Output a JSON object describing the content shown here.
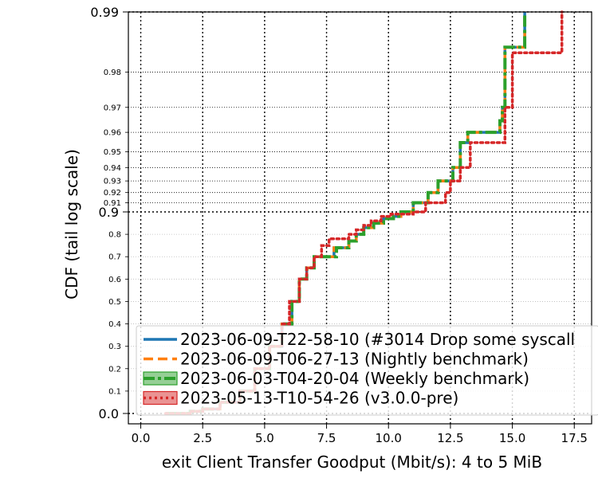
{
  "chart_data": {
    "type": "line",
    "title": "",
    "xlabel": "exit Client Transfer Goodput (Mbit/s): 4 to 5 MiB",
    "ylabel": "CDF (tail log scale)",
    "xlim": [
      -0.5,
      18.2
    ],
    "x_ticks": [
      0.0,
      2.5,
      5.0,
      7.5,
      10.0,
      12.5,
      15.0,
      17.5
    ],
    "x_tick_labels": [
      "0.0",
      "2.5",
      "5.0",
      "7.5",
      "10.0",
      "12.5",
      "15.0",
      "17.5"
    ],
    "y_scale": "tail-log",
    "y_ticks_major": [
      0.0,
      0.9,
      0.99
    ],
    "y_tick_labels_major": [
      "0.0",
      "0.9",
      "0.99"
    ],
    "y_ticks_minor": [
      0.1,
      0.2,
      0.3,
      0.4,
      0.5,
      0.6,
      0.7,
      0.8,
      0.91,
      0.92,
      0.93,
      0.94,
      0.95,
      0.96,
      0.97,
      0.98
    ],
    "y_tick_labels_minor": [
      "0.1",
      "0.2",
      "0.3",
      "0.4",
      "0.5",
      "0.6",
      "0.7",
      "0.8",
      "0.91",
      "0.92",
      "0.93",
      "0.94",
      "0.95",
      "0.96",
      "0.97",
      "0.98"
    ],
    "grid": true,
    "legend_position": "lower-right",
    "series": [
      {
        "name": "2023-06-09-T22-58-10 (#3014 Drop some syscall",
        "color": "#1f77b4",
        "style": "solid",
        "x": [
          1.0,
          2.0,
          2.5,
          3.2,
          4.0,
          4.6,
          5.2,
          5.7,
          6.1,
          6.4,
          6.7,
          7.0,
          7.8,
          8.4,
          8.7,
          9.0,
          9.4,
          9.8,
          10.2,
          10.5,
          11.0,
          11.6,
          12.0,
          12.6,
          12.9,
          13.2,
          14.5,
          14.6,
          14.7,
          15.5
        ],
        "y": [
          0.0,
          0.01,
          0.02,
          0.05,
          0.1,
          0.2,
          0.3,
          0.4,
          0.5,
          0.6,
          0.65,
          0.7,
          0.74,
          0.77,
          0.8,
          0.83,
          0.85,
          0.87,
          0.88,
          0.9,
          0.91,
          0.92,
          0.93,
          0.94,
          0.955,
          0.96,
          0.965,
          0.97,
          0.985,
          0.99
        ]
      },
      {
        "name": "2023-06-09-T06-27-13 (Nightly benchmark)",
        "color": "#ff7f0e",
        "style": "dashed",
        "x": [
          1.0,
          2.0,
          2.5,
          3.2,
          4.0,
          4.6,
          5.2,
          5.7,
          6.1,
          6.4,
          6.7,
          7.0,
          7.8,
          8.4,
          8.7,
          9.0,
          9.4,
          9.8,
          10.2,
          10.5,
          11.0,
          11.6,
          12.0,
          12.6,
          12.9,
          13.2,
          14.5,
          14.6,
          14.7,
          15.5
        ],
        "y": [
          0.0,
          0.01,
          0.02,
          0.05,
          0.1,
          0.2,
          0.3,
          0.4,
          0.5,
          0.6,
          0.65,
          0.7,
          0.74,
          0.77,
          0.8,
          0.83,
          0.85,
          0.87,
          0.88,
          0.9,
          0.91,
          0.92,
          0.93,
          0.94,
          0.955,
          0.96,
          0.965,
          0.97,
          0.985,
          0.99
        ]
      },
      {
        "name": "2023-06-03-T04-20-04 (Weekly benchmark)",
        "color": "#2ca02c",
        "style": "dashdot",
        "x": [
          1.0,
          2.0,
          2.5,
          3.2,
          4.0,
          4.6,
          5.2,
          5.7,
          6.1,
          6.4,
          6.7,
          7.0,
          7.9,
          8.4,
          8.7,
          9.0,
          9.4,
          9.8,
          10.2,
          10.5,
          11.0,
          11.6,
          12.0,
          12.6,
          12.9,
          13.2,
          14.5,
          14.6,
          14.7,
          15.5
        ],
        "y": [
          0.0,
          0.01,
          0.02,
          0.05,
          0.1,
          0.2,
          0.3,
          0.4,
          0.5,
          0.6,
          0.65,
          0.7,
          0.74,
          0.77,
          0.8,
          0.83,
          0.85,
          0.87,
          0.88,
          0.9,
          0.91,
          0.92,
          0.93,
          0.94,
          0.955,
          0.96,
          0.965,
          0.97,
          0.985,
          0.99
        ]
      },
      {
        "name": "2023-05-13-T10-54-26 (v3.0.0-pre)",
        "color": "#d62728",
        "style": "dotted",
        "x": [
          1.0,
          2.0,
          2.5,
          3.2,
          4.0,
          4.6,
          5.2,
          5.7,
          6.0,
          6.4,
          6.7,
          7.0,
          7.3,
          7.6,
          8.4,
          8.7,
          9.0,
          9.3,
          9.7,
          10.1,
          11.0,
          11.5,
          12.3,
          12.5,
          12.9,
          13.3,
          14.7,
          15.0,
          17.0
        ],
        "y": [
          0.0,
          0.01,
          0.02,
          0.05,
          0.1,
          0.2,
          0.3,
          0.4,
          0.5,
          0.6,
          0.65,
          0.7,
          0.75,
          0.78,
          0.8,
          0.82,
          0.84,
          0.86,
          0.88,
          0.89,
          0.9,
          0.91,
          0.92,
          0.93,
          0.94,
          0.955,
          0.97,
          0.984,
          0.99
        ]
      }
    ]
  }
}
